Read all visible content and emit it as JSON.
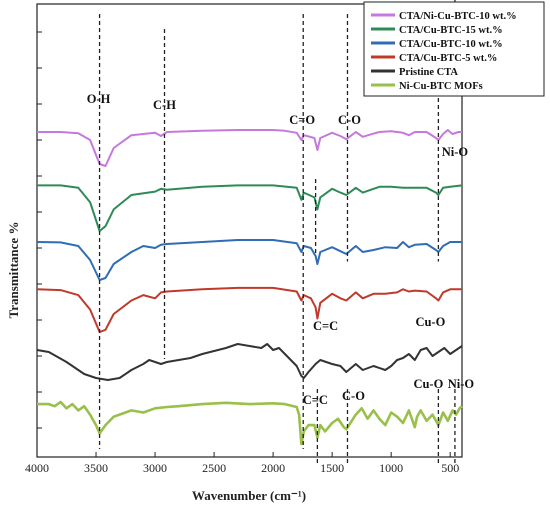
{
  "chart_data": {
    "type": "line",
    "title": "",
    "xlabel": "Wavenumber (cm⁻¹)",
    "ylabel": "Transmittance %",
    "xlim": [
      4000,
      400
    ],
    "x_reversed": true,
    "x_ticks": [
      "4000",
      "3500",
      "3000",
      "2500",
      "2000",
      "1500",
      "1000",
      "500"
    ],
    "y_ticks_labeled": false,
    "stacked_offsets": true,
    "legend": {
      "position": "top-right",
      "border": true
    },
    "series": [
      {
        "name": "CTA/Ni-Cu-BTC-10 wt.%",
        "color": "#c678dd",
        "baseline": 0.0,
        "points": [
          [
            4000,
            0.1
          ],
          [
            3800,
            0.1
          ],
          [
            3650,
            0.13
          ],
          [
            3550,
            0.3
          ],
          [
            3470,
            0.9
          ],
          [
            3420,
            0.95
          ],
          [
            3350,
            0.5
          ],
          [
            3200,
            0.18
          ],
          [
            3000,
            0.12
          ],
          [
            2950,
            0.2
          ],
          [
            2900,
            0.1
          ],
          [
            2600,
            0.07
          ],
          [
            2300,
            0.05
          ],
          [
            2000,
            0.05
          ],
          [
            1900,
            0.07
          ],
          [
            1800,
            0.12
          ],
          [
            1760,
            0.3
          ],
          [
            1740,
            0.18
          ],
          [
            1650,
            0.25
          ],
          [
            1625,
            0.55
          ],
          [
            1600,
            0.25
          ],
          [
            1500,
            0.12
          ],
          [
            1430,
            0.2
          ],
          [
            1380,
            0.28
          ],
          [
            1300,
            0.1
          ],
          [
            1240,
            0.22
          ],
          [
            1150,
            0.14
          ],
          [
            1100,
            0.1
          ],
          [
            1000,
            0.08
          ],
          [
            900,
            0.12
          ],
          [
            850,
            0.18
          ],
          [
            800,
            0.1
          ],
          [
            700,
            0.1
          ],
          [
            620,
            0.25
          ],
          [
            600,
            0.3
          ],
          [
            560,
            0.15
          ],
          [
            520,
            0.05
          ],
          [
            480,
            0.15
          ],
          [
            430,
            0.1
          ],
          [
            400,
            0.1
          ]
        ]
      },
      {
        "name": "CTA/Cu-BTC-15 wt.%",
        "color": "#2e8b57",
        "baseline": 1.0,
        "points": [
          [
            4000,
            0.05
          ],
          [
            3800,
            0.05
          ],
          [
            3650,
            0.1
          ],
          [
            3550,
            0.4
          ],
          [
            3470,
            1.0
          ],
          [
            3420,
            0.9
          ],
          [
            3350,
            0.55
          ],
          [
            3200,
            0.25
          ],
          [
            3000,
            0.18
          ],
          [
            2950,
            0.12
          ],
          [
            2900,
            0.14
          ],
          [
            2600,
            0.08
          ],
          [
            2300,
            0.05
          ],
          [
            2000,
            0.05
          ],
          [
            1800,
            0.1
          ],
          [
            1760,
            0.35
          ],
          [
            1740,
            0.2
          ],
          [
            1650,
            0.3
          ],
          [
            1625,
            0.55
          ],
          [
            1600,
            0.3
          ],
          [
            1500,
            0.12
          ],
          [
            1430,
            0.2
          ],
          [
            1380,
            0.25
          ],
          [
            1300,
            0.1
          ],
          [
            1240,
            0.2
          ],
          [
            1100,
            0.08
          ],
          [
            1000,
            0.08
          ],
          [
            900,
            0.1
          ],
          [
            700,
            0.1
          ],
          [
            620,
            0.2
          ],
          [
            600,
            0.25
          ],
          [
            560,
            0.1
          ],
          [
            500,
            0.08
          ],
          [
            400,
            0.05
          ]
        ]
      },
      {
        "name": "CTA/Cu-BTC-10 wt.%",
        "color": "#2f6db5",
        "baseline": 2.0,
        "points": [
          [
            4000,
            0.05
          ],
          [
            3800,
            0.06
          ],
          [
            3650,
            0.15
          ],
          [
            3550,
            0.5
          ],
          [
            3470,
            1.0
          ],
          [
            3420,
            0.95
          ],
          [
            3350,
            0.6
          ],
          [
            3200,
            0.3
          ],
          [
            3100,
            0.15
          ],
          [
            3000,
            0.2
          ],
          [
            2950,
            0.12
          ],
          [
            2900,
            0.1
          ],
          [
            2600,
            0.05
          ],
          [
            2300,
            0.0
          ],
          [
            2000,
            0.0
          ],
          [
            1800,
            0.08
          ],
          [
            1760,
            0.3
          ],
          [
            1740,
            0.15
          ],
          [
            1680,
            0.2
          ],
          [
            1640,
            0.4
          ],
          [
            1625,
            0.6
          ],
          [
            1600,
            0.3
          ],
          [
            1500,
            0.18
          ],
          [
            1430,
            0.28
          ],
          [
            1380,
            0.35
          ],
          [
            1300,
            0.15
          ],
          [
            1240,
            0.3
          ],
          [
            1150,
            0.25
          ],
          [
            1050,
            0.18
          ],
          [
            950,
            0.2
          ],
          [
            900,
            0.05
          ],
          [
            850,
            0.18
          ],
          [
            800,
            0.12
          ],
          [
            700,
            0.1
          ],
          [
            620,
            0.25
          ],
          [
            600,
            0.3
          ],
          [
            560,
            0.15
          ],
          [
            500,
            0.05
          ],
          [
            400,
            0.05
          ]
        ]
      },
      {
        "name": "CTA/Cu-BTC-5 wt.%",
        "color": "#c0392b",
        "baseline": 3.0,
        "points": [
          [
            4000,
            0.05
          ],
          [
            3800,
            0.07
          ],
          [
            3650,
            0.18
          ],
          [
            3550,
            0.5
          ],
          [
            3470,
            1.0
          ],
          [
            3420,
            0.95
          ],
          [
            3350,
            0.6
          ],
          [
            3200,
            0.3
          ],
          [
            3100,
            0.18
          ],
          [
            3000,
            0.25
          ],
          [
            2950,
            0.12
          ],
          [
            2900,
            0.1
          ],
          [
            2600,
            0.05
          ],
          [
            2300,
            0.02
          ],
          [
            2000,
            0.02
          ],
          [
            1800,
            0.1
          ],
          [
            1760,
            0.3
          ],
          [
            1740,
            0.18
          ],
          [
            1680,
            0.25
          ],
          [
            1640,
            0.45
          ],
          [
            1625,
            0.7
          ],
          [
            1600,
            0.35
          ],
          [
            1500,
            0.15
          ],
          [
            1430,
            0.25
          ],
          [
            1380,
            0.3
          ],
          [
            1300,
            0.12
          ],
          [
            1240,
            0.25
          ],
          [
            1150,
            0.15
          ],
          [
            1050,
            0.15
          ],
          [
            950,
            0.12
          ],
          [
            900,
            0.05
          ],
          [
            850,
            0.1
          ],
          [
            800,
            0.08
          ],
          [
            700,
            0.1
          ],
          [
            620,
            0.25
          ],
          [
            600,
            0.3
          ],
          [
            560,
            0.12
          ],
          [
            500,
            0.05
          ],
          [
            400,
            0.05
          ]
        ]
      },
      {
        "name": "Pristine CTA",
        "color": "#333333",
        "baseline": 4.0,
        "points": [
          [
            4000,
            0.2
          ],
          [
            3900,
            0.25
          ],
          [
            3750,
            0.5
          ],
          [
            3600,
            0.8
          ],
          [
            3500,
            0.9
          ],
          [
            3400,
            0.95
          ],
          [
            3300,
            0.9
          ],
          [
            3200,
            0.7
          ],
          [
            3100,
            0.55
          ],
          [
            3050,
            0.45
          ],
          [
            3000,
            0.5
          ],
          [
            2950,
            0.55
          ],
          [
            2900,
            0.5
          ],
          [
            2700,
            0.4
          ],
          [
            2600,
            0.3
          ],
          [
            2400,
            0.15
          ],
          [
            2300,
            0.05
          ],
          [
            2200,
            0.1
          ],
          [
            2100,
            0.15
          ],
          [
            2050,
            0.05
          ],
          [
            2000,
            0.2
          ],
          [
            1950,
            0.15
          ],
          [
            1900,
            0.3
          ],
          [
            1800,
            0.6
          ],
          [
            1760,
            0.85
          ],
          [
            1740,
            0.9
          ],
          [
            1700,
            0.75
          ],
          [
            1640,
            0.55
          ],
          [
            1600,
            0.45
          ],
          [
            1500,
            0.55
          ],
          [
            1430,
            0.6
          ],
          [
            1380,
            0.75
          ],
          [
            1300,
            0.55
          ],
          [
            1240,
            0.7
          ],
          [
            1150,
            0.6
          ],
          [
            1050,
            0.7
          ],
          [
            1000,
            0.6
          ],
          [
            950,
            0.45
          ],
          [
            900,
            0.4
          ],
          [
            850,
            0.3
          ],
          [
            800,
            0.45
          ],
          [
            750,
            0.2
          ],
          [
            700,
            0.15
          ],
          [
            650,
            0.35
          ],
          [
            600,
            0.25
          ],
          [
            550,
            0.15
          ],
          [
            500,
            0.3
          ],
          [
            450,
            0.2
          ],
          [
            400,
            0.1
          ]
        ]
      },
      {
        "name": "Ni-Cu-BTC MOFs",
        "color": "#9abf4a",
        "baseline": 5.0,
        "points": [
          [
            4000,
            0.05
          ],
          [
            3900,
            0.05
          ],
          [
            3850,
            0.1
          ],
          [
            3800,
            0.0
          ],
          [
            3750,
            0.15
          ],
          [
            3700,
            0.05
          ],
          [
            3650,
            0.2
          ],
          [
            3600,
            0.1
          ],
          [
            3550,
            0.3
          ],
          [
            3500,
            0.55
          ],
          [
            3470,
            0.75
          ],
          [
            3420,
            0.55
          ],
          [
            3350,
            0.35
          ],
          [
            3300,
            0.3
          ],
          [
            3200,
            0.2
          ],
          [
            3100,
            0.25
          ],
          [
            3000,
            0.15
          ],
          [
            2900,
            0.12
          ],
          [
            2800,
            0.1
          ],
          [
            2600,
            0.05
          ],
          [
            2400,
            0.02
          ],
          [
            2200,
            0.05
          ],
          [
            2000,
            0.03
          ],
          [
            1900,
            0.05
          ],
          [
            1800,
            0.12
          ],
          [
            1780,
            0.3
          ],
          [
            1760,
            1.0
          ],
          [
            1740,
            0.7
          ],
          [
            1700,
            0.55
          ],
          [
            1650,
            0.55
          ],
          [
            1625,
            0.85
          ],
          [
            1600,
            0.55
          ],
          [
            1560,
            0.7
          ],
          [
            1500,
            0.5
          ],
          [
            1450,
            0.4
          ],
          [
            1400,
            0.6
          ],
          [
            1380,
            0.65
          ],
          [
            1300,
            0.3
          ],
          [
            1250,
            0.15
          ],
          [
            1200,
            0.4
          ],
          [
            1150,
            0.2
          ],
          [
            1100,
            0.4
          ],
          [
            1050,
            0.55
          ],
          [
            1000,
            0.25
          ],
          [
            950,
            0.35
          ],
          [
            900,
            0.5
          ],
          [
            850,
            0.2
          ],
          [
            800,
            0.6
          ],
          [
            780,
            0.35
          ],
          [
            750,
            0.2
          ],
          [
            700,
            0.45
          ],
          [
            650,
            0.3
          ],
          [
            600,
            0.55
          ],
          [
            560,
            0.25
          ],
          [
            520,
            0.45
          ],
          [
            480,
            0.2
          ],
          [
            450,
            0.3
          ],
          [
            420,
            0.15
          ],
          [
            400,
            0.1
          ]
        ]
      }
    ],
    "annotations": [
      {
        "label": "O-H",
        "x": 3470,
        "line_from": 0,
        "line_to": 5.8
      },
      {
        "label": "C-H",
        "x": 2920,
        "line_from": 0.2,
        "line_to": 4.6
      },
      {
        "label": "C=O",
        "x": 1745,
        "line_from": 0,
        "line_to": 5.8
      },
      {
        "label": "C-O",
        "x": 1370,
        "line_from": 0,
        "line_to": 3.3
      },
      {
        "label": "Ni-O",
        "x": 460,
        "line_from": -0.4,
        "line_to": 0
      },
      {
        "label": "C=C",
        "x": 1640,
        "line_from": 2.2,
        "line_to": 3.2
      },
      {
        "label": "Cu-O",
        "x": 600,
        "line_from": 0,
        "line_to": 3.3
      },
      {
        "label": "C=C",
        "x": 1625,
        "line_from": 5.0,
        "line_to": 6.0
      },
      {
        "label": "C-O",
        "x": 1370,
        "line_from": 5.0,
        "line_to": 6.0
      },
      {
        "label": "Cu-O",
        "x": 600,
        "line_from": 5.0,
        "line_to": 6.0
      },
      {
        "label": "Ni-O",
        "x": 460,
        "line_from": 5.0,
        "line_to": 6.0
      }
    ]
  }
}
